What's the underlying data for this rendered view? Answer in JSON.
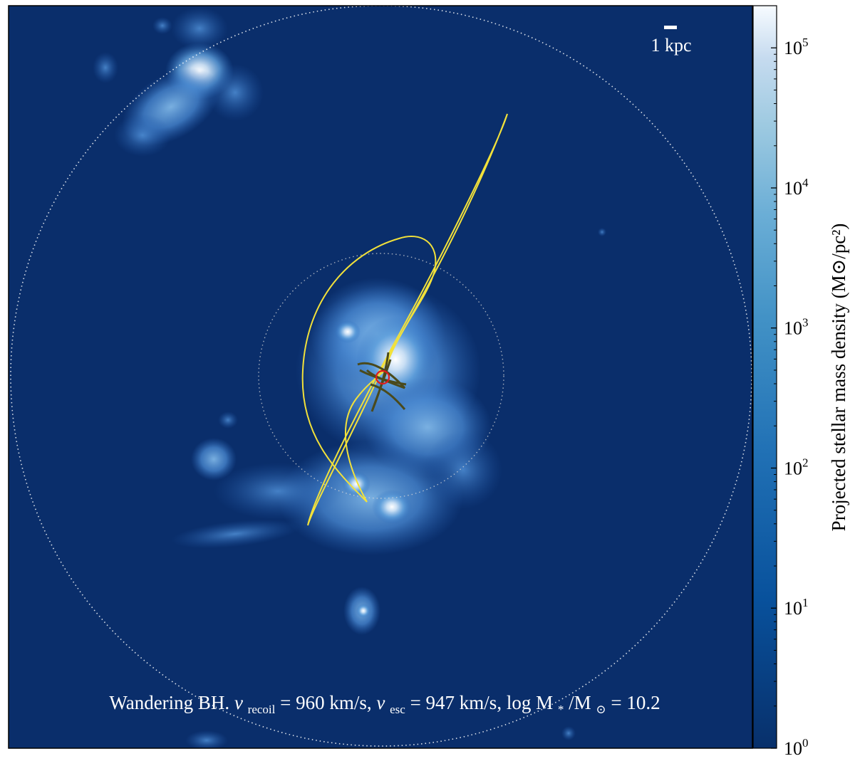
{
  "panel": {
    "scale_bar_label": "1 kpc",
    "caption": {
      "prefix": "Wandering BH. ",
      "v_recoil_symbol": "v",
      "v_recoil_sub": "recoil",
      "v_recoil_value": " = 960 km/s, ",
      "v_esc_symbol": "v",
      "v_esc_sub": "esc",
      "v_esc_value": " = 947 km/s, ",
      "mass_text": "log M",
      "mass_sub1": "*",
      "mass_mid": " /M",
      "mass_sub2": "⊙",
      "mass_value": " = 10.2"
    },
    "colors": {
      "background": "#0a2e6b",
      "orbit_outer": "#f2e13a",
      "orbit_inner": "#4a4a1c",
      "bh_marker": "#e01b1b",
      "rings": "#ffffff"
    }
  },
  "colorbar": {
    "label": "Projected stellar mass density (M⊙/pc²)",
    "scale": "log",
    "range": [
      1,
      200000
    ],
    "ticks": [
      {
        "base": "10",
        "exp": "0"
      },
      {
        "base": "10",
        "exp": "1"
      },
      {
        "base": "10",
        "exp": "2"
      },
      {
        "base": "10",
        "exp": "3"
      },
      {
        "base": "10",
        "exp": "4"
      },
      {
        "base": "10",
        "exp": "5"
      }
    ]
  }
}
